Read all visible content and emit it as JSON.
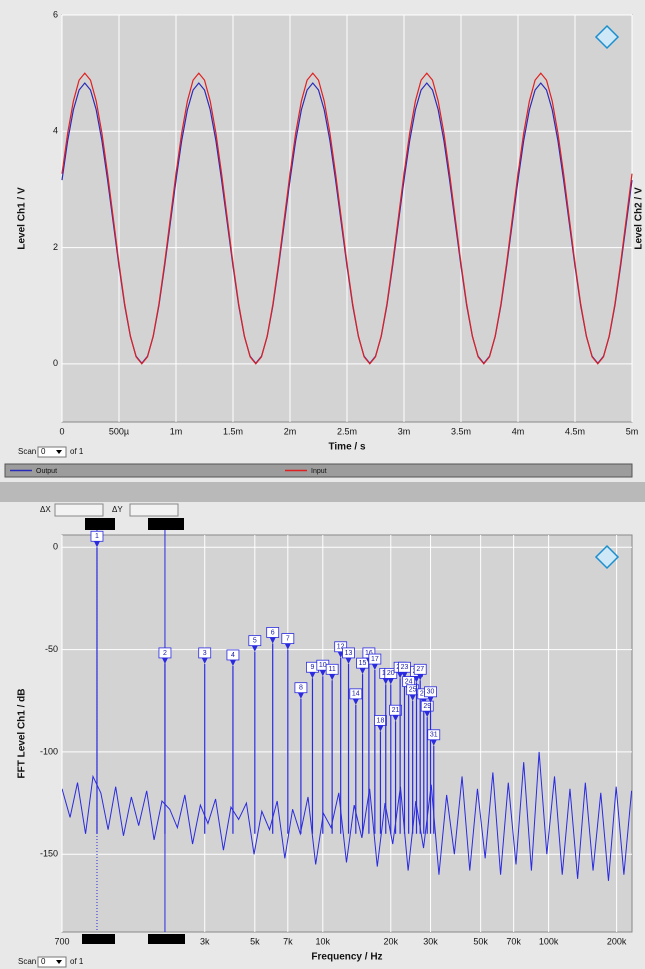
{
  "chart_data": [
    {
      "type": "line",
      "y_label": "Level Ch1 / V",
      "y2_label": "Level Ch2 / V",
      "x_label": "Time / s",
      "scan_label": "Scan",
      "scan_value": 0,
      "scan_total": "of 1",
      "xlim": [
        0,
        0.005
      ],
      "ylim": [
        -1,
        6
      ],
      "grid": true,
      "xticks": [
        0,
        {
          "value": 0.0005,
          "label": "500µ"
        },
        {
          "value": 0.001,
          "label": "1m"
        },
        {
          "value": 0.0015,
          "label": "1.5m"
        },
        {
          "value": 0.002,
          "label": "2m"
        },
        {
          "value": 0.0025,
          "label": "2.5m"
        },
        {
          "value": 0.003,
          "label": "3m"
        },
        {
          "value": 0.0035,
          "label": "3.5m"
        },
        {
          "value": 0.004,
          "label": "4m"
        },
        {
          "value": 0.0045,
          "label": "4.5m"
        },
        {
          "value": 0.005,
          "label": "5m"
        }
      ],
      "yticks": [
        0,
        2,
        4,
        6
      ],
      "x": [
        0,
        5e-05,
        0.0001,
        0.00015,
        0.0002,
        0.00025,
        0.0003,
        0.00035,
        0.0004,
        0.00045,
        0.0005,
        0.00055,
        0.0006,
        0.00065,
        0.0007,
        0.00075,
        0.0008,
        0.00085,
        0.0009,
        0.00095,
        0.001,
        0.00105,
        0.0011,
        0.00115,
        0.0012,
        0.00125,
        0.0013,
        0.00135,
        0.0014,
        0.00145,
        0.0015,
        0.00155,
        0.0016,
        0.00165,
        0.0017,
        0.00175,
        0.0018,
        0.00185,
        0.0019,
        0.00195,
        0.002,
        0.00205,
        0.0021,
        0.00215,
        0.0022,
        0.00225,
        0.0023,
        0.00235,
        0.0024,
        0.00245,
        0.0025,
        0.00255,
        0.0026,
        0.00265,
        0.0027,
        0.00275,
        0.0028,
        0.00285,
        0.0029,
        0.00295,
        0.003,
        0.00305,
        0.0031,
        0.00315,
        0.0032,
        0.00325,
        0.0033,
        0.00335,
        0.0034,
        0.00345,
        0.0035,
        0.00355,
        0.0036,
        0.00365,
        0.0037,
        0.00375,
        0.0038,
        0.00385,
        0.0039,
        0.00395,
        0.004,
        0.00405,
        0.0041,
        0.00415,
        0.0042,
        0.00425,
        0.0043,
        0.00435,
        0.0044,
        0.00445,
        0.0045,
        0.00455,
        0.0046,
        0.00465,
        0.0047,
        0.00475,
        0.0048,
        0.00485,
        0.0049,
        0.00495,
        0.005
      ],
      "series": [
        {
          "name": "Output",
          "color": "#2a2ab8",
          "values": [
            3.16,
            3.84,
            4.37,
            4.71,
            4.83,
            4.71,
            4.37,
            3.84,
            3.16,
            2.42,
            1.68,
            1.0,
            0.47,
            0.13,
            0.01,
            0.13,
            0.47,
            1.0,
            1.68,
            2.42,
            3.16,
            3.84,
            4.37,
            4.71,
            4.83,
            4.71,
            4.37,
            3.84,
            3.16,
            2.42,
            1.68,
            1.0,
            0.47,
            0.13,
            0.01,
            0.13,
            0.47,
            1.0,
            1.68,
            2.42,
            3.16,
            3.84,
            4.37,
            4.71,
            4.83,
            4.71,
            4.37,
            3.84,
            3.16,
            2.42,
            1.68,
            1.0,
            0.47,
            0.13,
            0.01,
            0.13,
            0.47,
            1.0,
            1.68,
            2.42,
            3.16,
            3.84,
            4.37,
            4.71,
            4.83,
            4.71,
            4.37,
            3.84,
            3.16,
            2.42,
            1.68,
            1.0,
            0.47,
            0.13,
            0.01,
            0.13,
            0.47,
            1.0,
            1.68,
            2.42,
            3.16,
            3.84,
            4.37,
            4.71,
            4.83,
            4.71,
            4.37,
            3.84,
            3.16,
            2.42,
            1.68,
            1.0,
            0.47,
            0.13,
            0.01,
            0.13,
            0.47,
            1.0,
            1.68,
            2.42,
            3.16
          ]
        },
        {
          "name": "Input",
          "color": "#e02020",
          "values": [
            3.27,
            3.97,
            4.52,
            4.88,
            5,
            4.88,
            4.52,
            3.97,
            3.27,
            2.5,
            1.73,
            1.03,
            0.48,
            0.12,
            0,
            0.12,
            0.48,
            1.03,
            1.73,
            2.5,
            3.27,
            3.97,
            4.52,
            4.88,
            5,
            4.88,
            4.52,
            3.97,
            3.27,
            2.5,
            1.73,
            1.03,
            0.48,
            0.12,
            0,
            0.12,
            0.48,
            1.03,
            1.73,
            2.5,
            3.27,
            3.97,
            4.52,
            4.88,
            5,
            4.88,
            4.52,
            3.97,
            3.27,
            2.5,
            1.73,
            1.03,
            0.48,
            0.12,
            0,
            0.12,
            0.48,
            1.03,
            1.73,
            2.5,
            3.27,
            3.97,
            4.52,
            4.88,
            5,
            4.88,
            4.52,
            3.97,
            3.27,
            2.5,
            1.73,
            1.03,
            0.48,
            0.12,
            0,
            0.12,
            0.48,
            1.03,
            1.73,
            2.5,
            3.27,
            3.97,
            4.52,
            4.88,
            5,
            4.88,
            4.52,
            3.97,
            3.27,
            2.5,
            1.73,
            1.03,
            0.48,
            0.12,
            0,
            0.12,
            0.48,
            1.03,
            1.73,
            2.5,
            3.27
          ]
        }
      ]
    },
    {
      "type": "spectrum",
      "y_label": "FFT Level Ch1 / dB",
      "x_label": "Frequency / Hz",
      "scan_label": "Scan",
      "scan_value": 0,
      "scan_total": "of 1",
      "delta_x_label": "ΔX",
      "delta_y_label": "ΔY",
      "log_x": true,
      "xlim": [
        700,
        234000
      ],
      "ylim": [
        -188,
        6
      ],
      "grid": true,
      "color": "#2a2ae0",
      "xticks": [
        700,
        {
          "value": 3000,
          "label": "3k"
        },
        {
          "value": 5000,
          "label": "5k"
        },
        {
          "value": 7000,
          "label": "7k"
        },
        {
          "value": 10000,
          "label": "10k"
        },
        {
          "value": 20000,
          "label": "20k"
        },
        {
          "value": 30000,
          "label": "30k"
        },
        {
          "value": 50000,
          "label": "50k"
        },
        {
          "value": 70000,
          "label": "70k"
        },
        {
          "value": 100000,
          "label": "100k"
        },
        {
          "value": 200000,
          "label": "200k"
        }
      ],
      "yticks": [
        -150,
        -100,
        -50,
        0
      ],
      "noise": {
        "x": [
          700,
          760,
          820,
          890,
          960,
          1040,
          1120,
          1210,
          1310,
          1420,
          1530,
          1660,
          1790,
          1940,
          2100,
          2270,
          2450,
          2650,
          2870,
          3100,
          3350,
          3630,
          3920,
          4240,
          4590,
          4960,
          5370,
          5810,
          6280,
          6790,
          7350,
          7950,
          8600,
          9300,
          10060,
          10880,
          11770,
          12730,
          13770,
          14900,
          16120,
          17430,
          18860,
          20400,
          22070,
          23870,
          25820,
          27930,
          30210,
          32680,
          35350,
          38240,
          41370,
          44750,
          48400,
          52360,
          56640,
          61270,
          66280,
          71700,
          77560,
          83900,
          90760,
          98180,
          106200,
          114900,
          124300,
          134400,
          145400,
          157300,
          170200,
          184100,
          199100,
          215400,
          233000
        ],
        "values": [
          -118,
          -132,
          -115,
          -140,
          -112,
          -120,
          -138,
          -117,
          -141,
          -122,
          -136,
          -119,
          -143,
          -124,
          -128,
          -137,
          -121,
          -145,
          -126,
          -135,
          -123,
          -148,
          -127,
          -133,
          -125,
          -150,
          -129,
          -138,
          -124,
          -152,
          -128,
          -140,
          -122,
          -155,
          -130,
          -137,
          -120,
          -154,
          -126,
          -142,
          -118,
          -156,
          -125,
          -145,
          -117,
          -158,
          -124,
          -147,
          -116,
          -160,
          -121,
          -150,
          -112,
          -158,
          -118,
          -152,
          -110,
          -160,
          -115,
          -155,
          -105,
          -158,
          -100,
          -150,
          -112,
          -160,
          -118,
          -162,
          -115,
          -158,
          -120,
          -163,
          -117,
          -160,
          -119
        ]
      },
      "harmonics": {
        "x": [
          1000,
          2000,
          3000,
          4000,
          5000,
          6000,
          7000,
          8000,
          9000,
          10000,
          11000,
          12000,
          13000,
          14000,
          15000,
          16000,
          17000,
          18000,
          19000,
          20000,
          21000,
          22000,
          23000,
          24000,
          25000,
          26000,
          27000,
          28000,
          29000,
          30000,
          31000
        ],
        "values": [
          0,
          -57,
          -57,
          -58,
          -51,
          -47,
          -50,
          -74,
          -64,
          -63,
          -65,
          -54,
          -57,
          -77,
          -62,
          -57,
          -60,
          -90,
          -67,
          -67,
          -85,
          -64,
          -64,
          -71,
          -75,
          -66,
          -65,
          -77,
          -83,
          -76,
          -97
        ],
        "labels": [
          "1",
          "2",
          "3",
          "4",
          "5",
          "6",
          "7",
          "8",
          "9",
          "10",
          "11",
          "12",
          "13",
          "14",
          "15",
          "16",
          "17",
          "18",
          "19",
          "20",
          "21",
          "22",
          "23",
          "24",
          "25",
          "26",
          "27",
          "28",
          "29",
          "30",
          "31"
        ]
      }
    }
  ]
}
